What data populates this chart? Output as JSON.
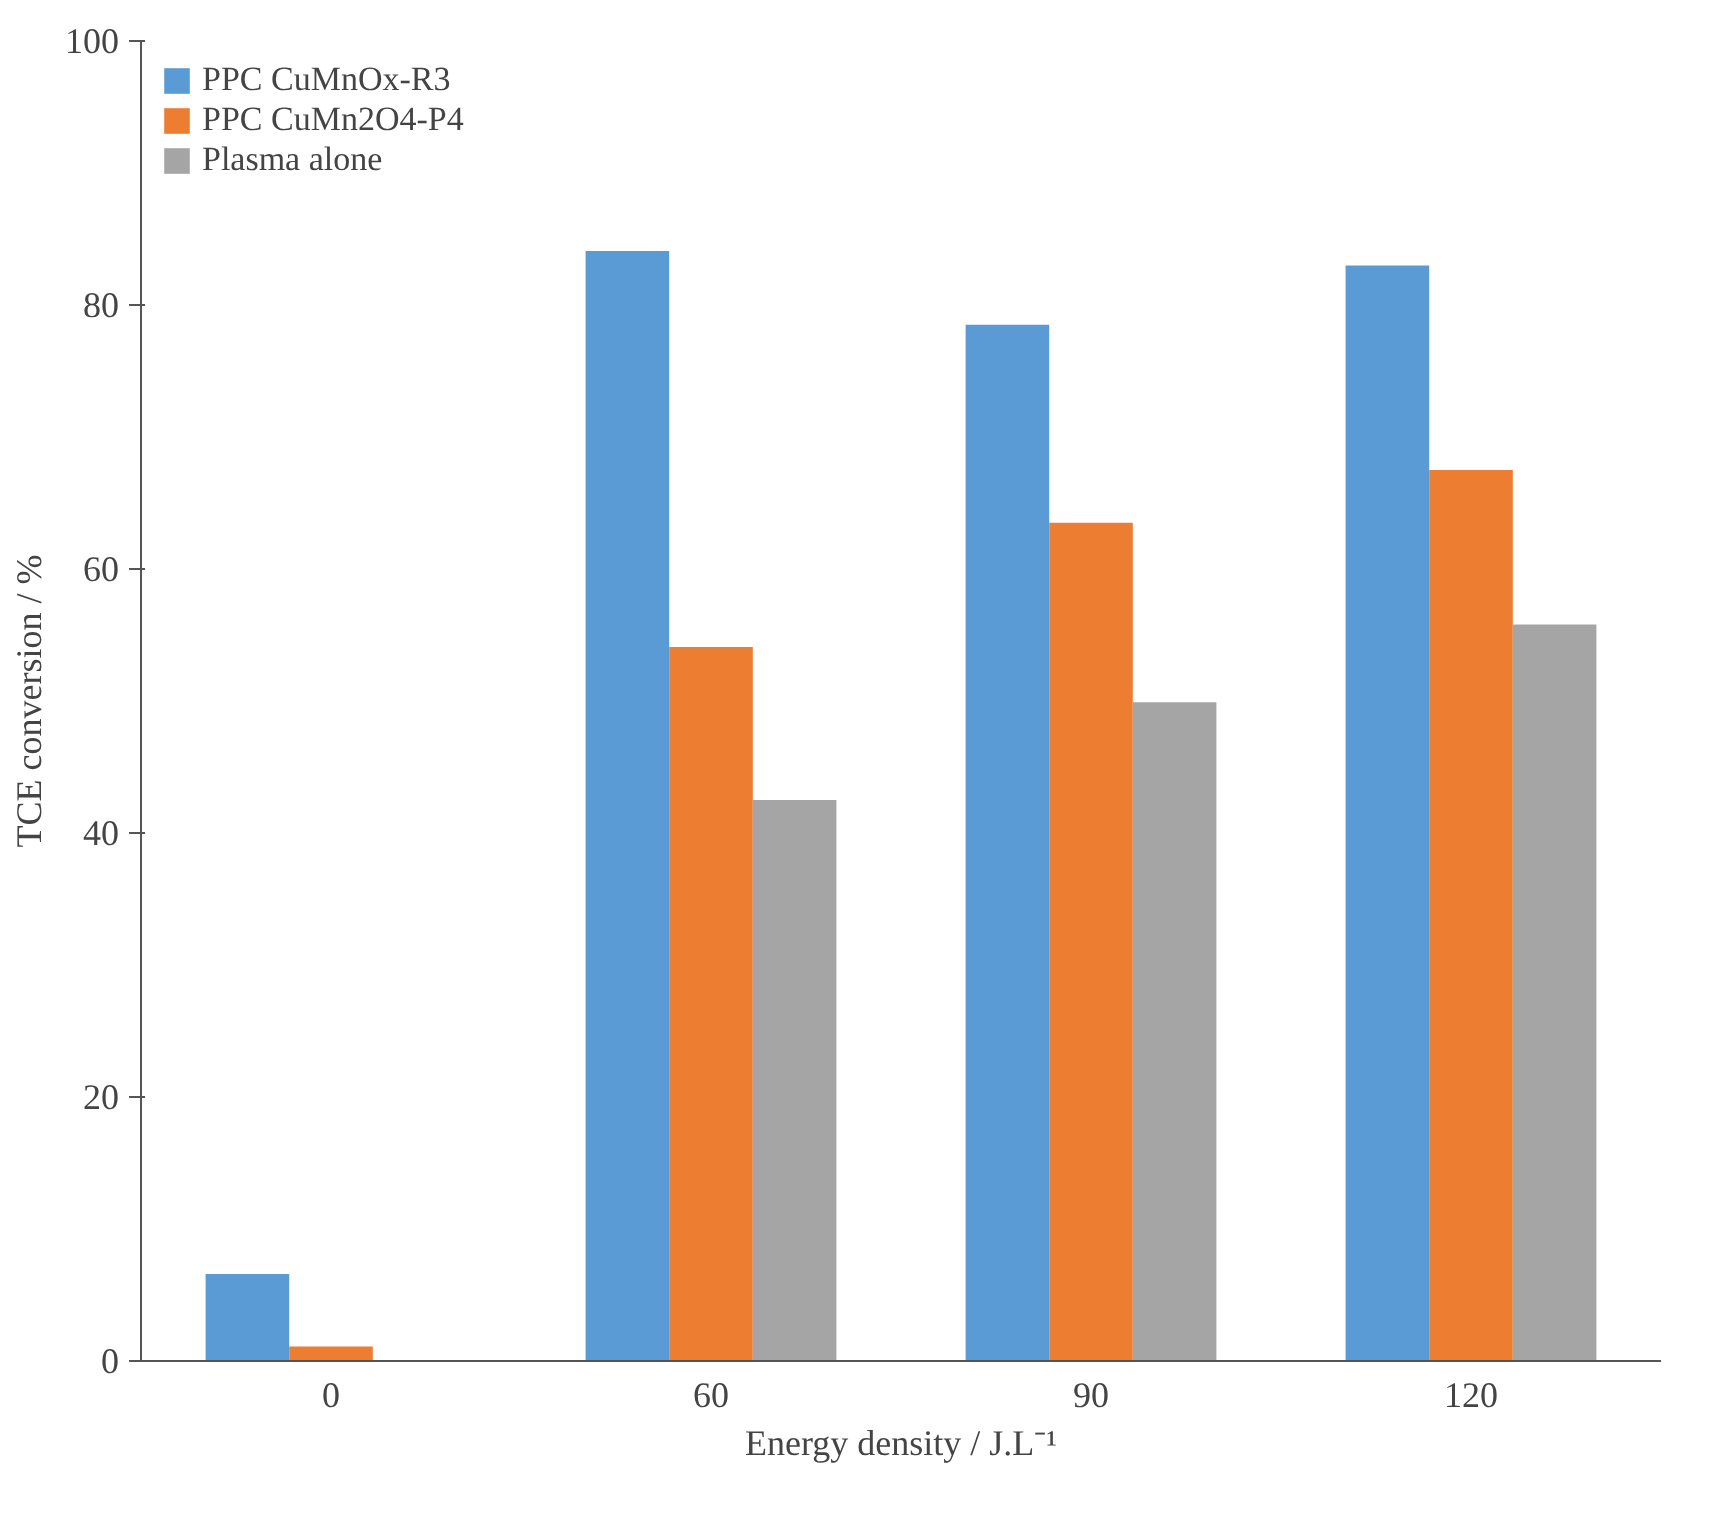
{
  "chart_data": {
    "type": "bar",
    "xlabel": "Energy density / J.L⁻¹",
    "ylabel": "TCE conversion / %",
    "categories": [
      "0",
      "60",
      "90",
      "120"
    ],
    "series": [
      {
        "name": "PPC CuMnOx-R3",
        "color": "#5b9bd5",
        "values": [
          6.6,
          84.1,
          78.5,
          83.0
        ]
      },
      {
        "name": "PPC CuMn2O4-P4",
        "color": "#ed7d31",
        "values": [
          1.1,
          54.1,
          63.5,
          67.5
        ]
      },
      {
        "name": "Plasma alone",
        "color": "#a5a5a5",
        "values": [
          0,
          42.5,
          49.9,
          55.8
        ]
      }
    ],
    "ylim": [
      0,
      100
    ],
    "yticks": [
      0,
      20,
      40,
      60,
      80,
      100
    ],
    "grid": false,
    "legend": "top left"
  }
}
